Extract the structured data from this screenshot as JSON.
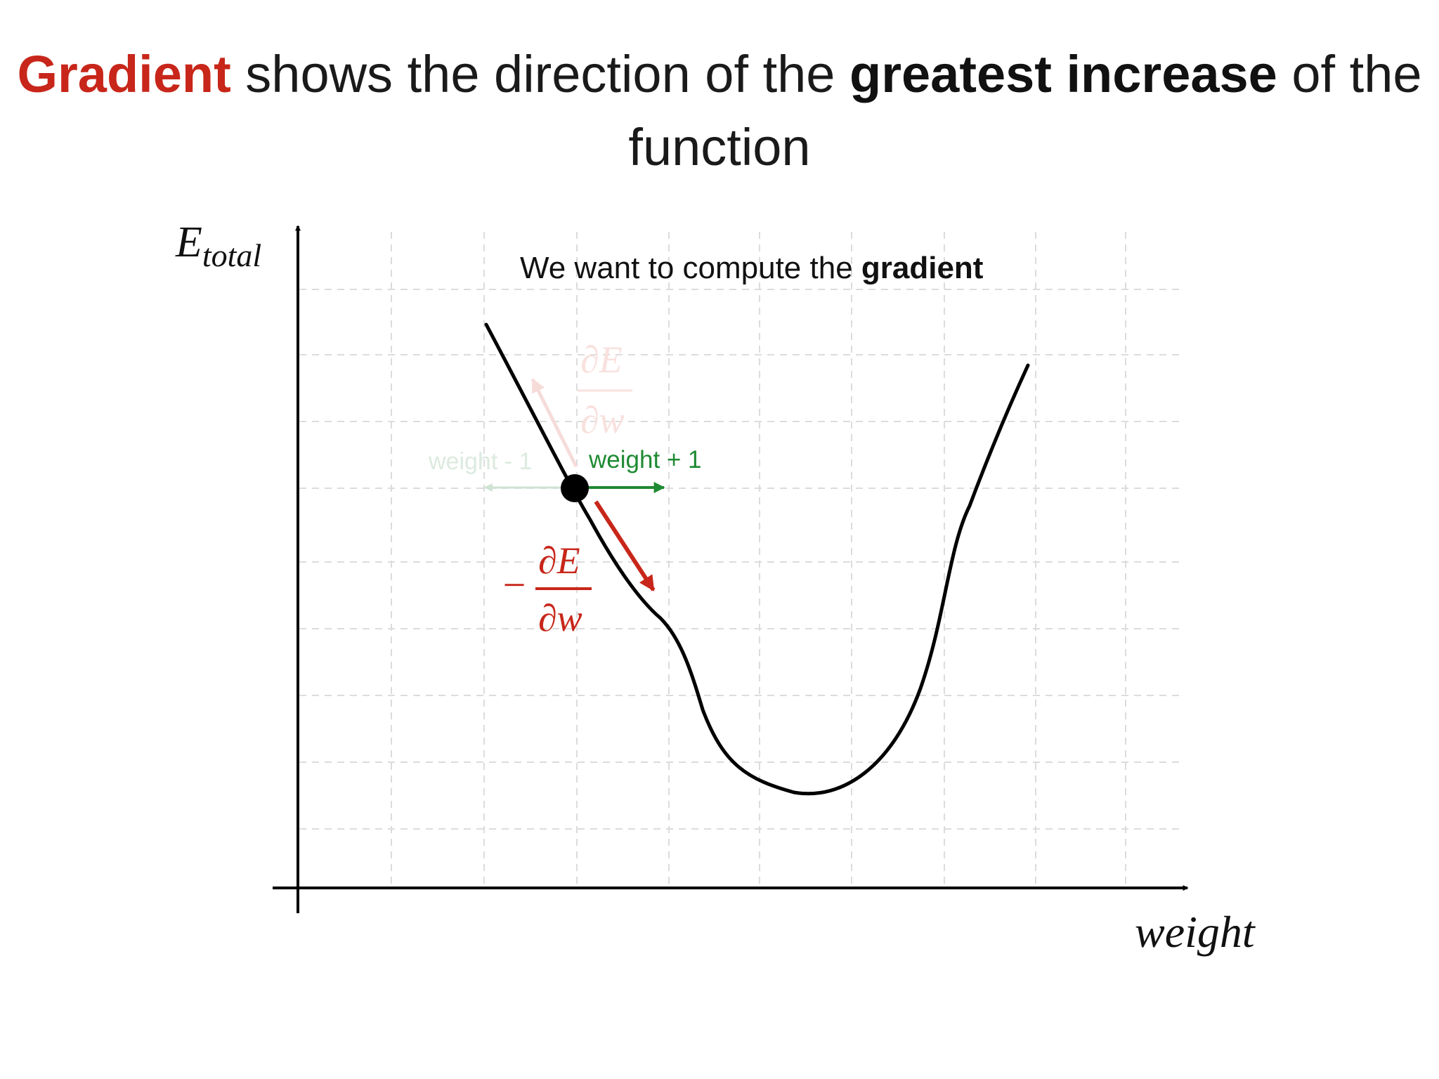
{
  "title": {
    "part1": "Gradient",
    "part2": " shows the direction of the ",
    "part3": "greatest increase",
    "part4": " of the",
    "line2": "function"
  },
  "diagram": {
    "ylabel_main": "E",
    "ylabel_sub": "total",
    "xlabel": "weight",
    "note_prefix": "We want to compute the ",
    "note_bold": "gradient",
    "weight_plus_label": "weight + 1",
    "weight_minus_label": "weight - 1",
    "dE": "∂E",
    "dw": "∂w",
    "minus_sign": "−",
    "colors": {
      "gradient_red": "#c8261a",
      "weight_green": "#1e8a32",
      "curve": "#000000",
      "grid": "#d9d9d9"
    }
  }
}
